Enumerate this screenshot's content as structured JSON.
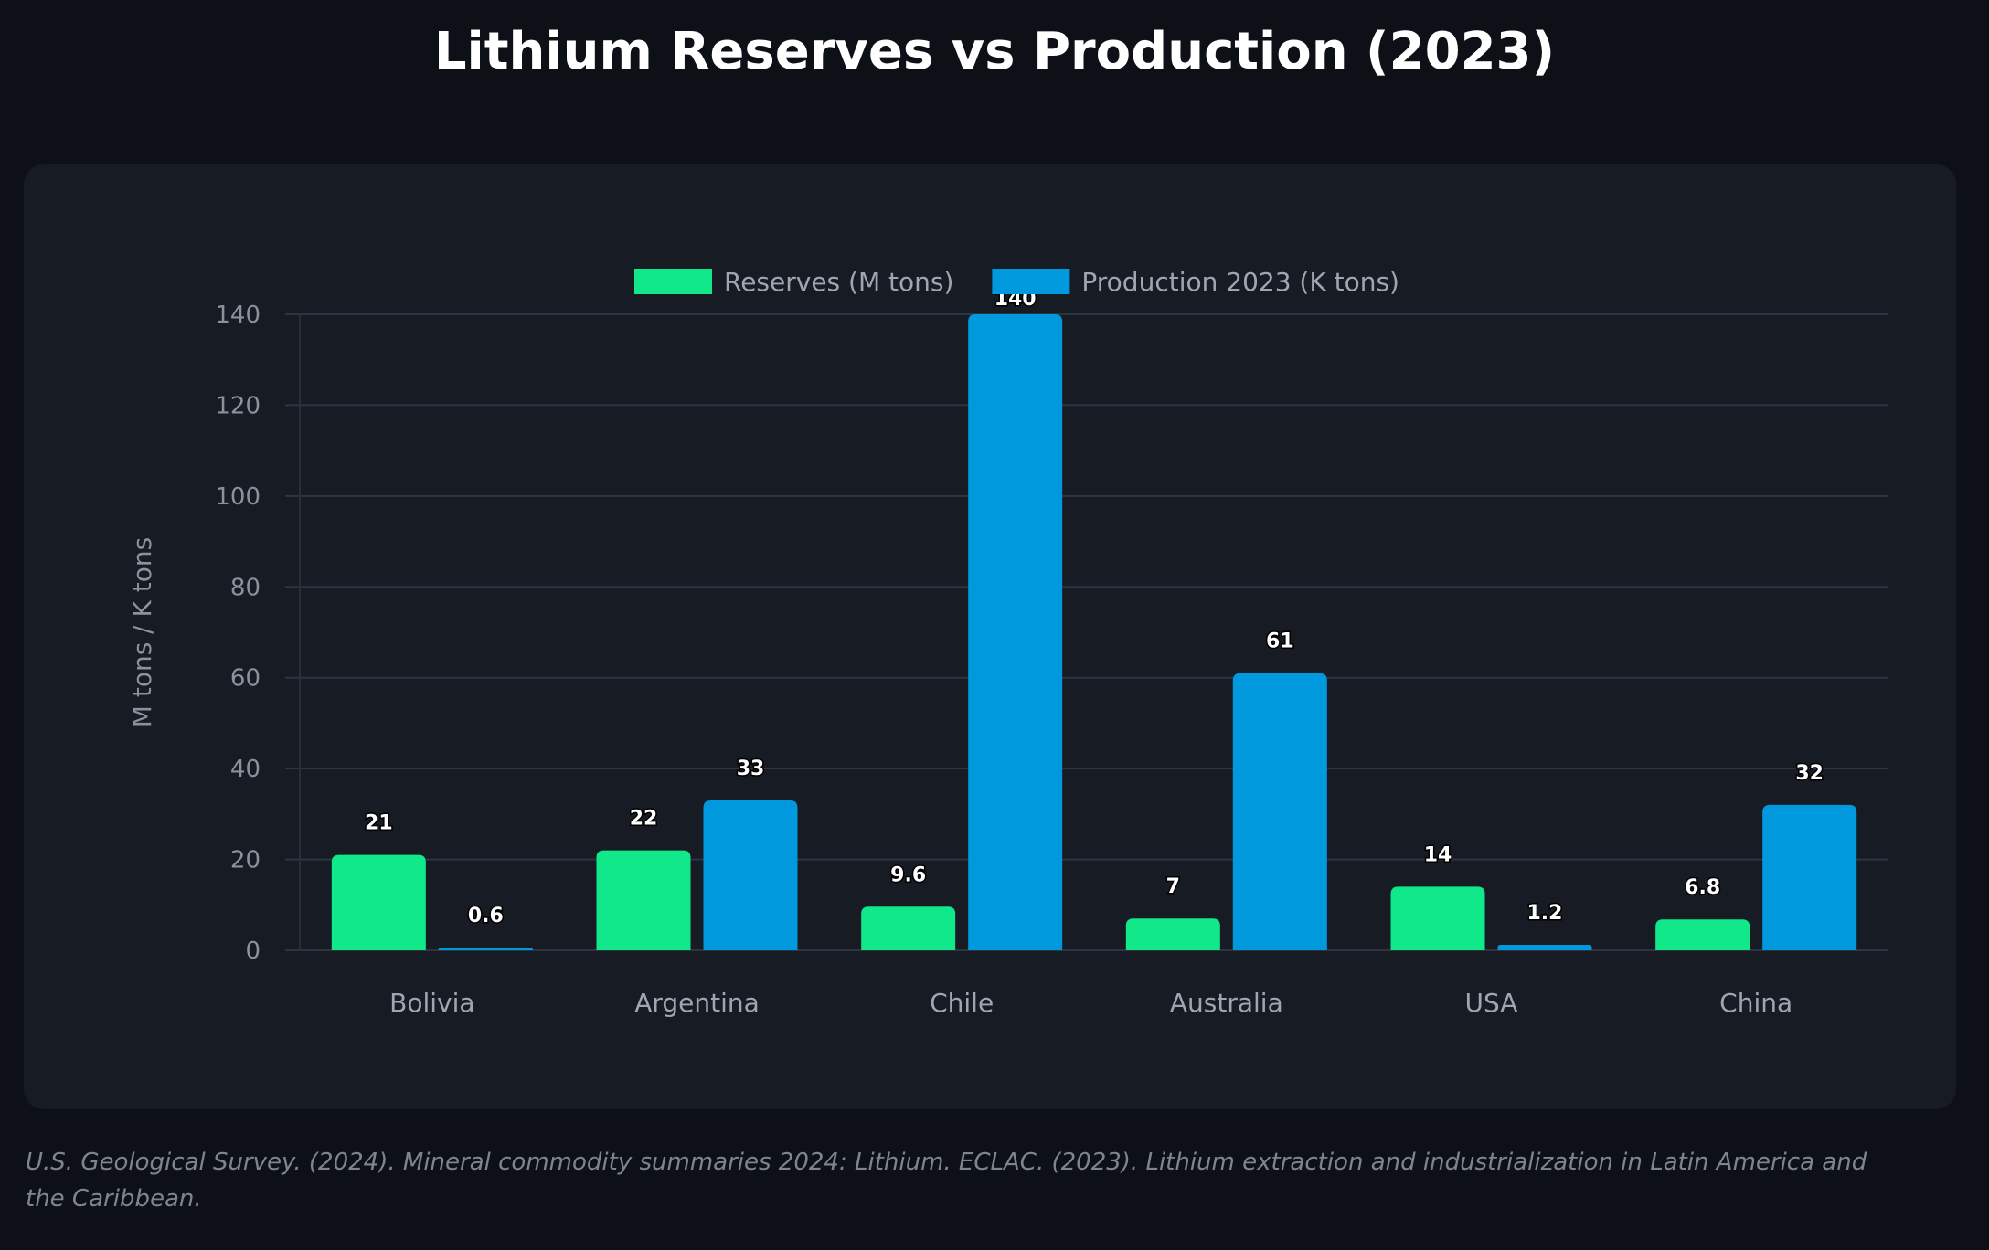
{
  "footer": "U.S. Geological Survey. (2024). Mineral commodity summaries 2024: Lithium. ECLAC. (2023). Lithium extraction and industrialization in Latin America and the Caribbean.",
  "chart_data": {
    "type": "bar",
    "title": "Lithium Reserves vs Production (2023)",
    "xlabel": "",
    "ylabel": "M tons / K tons",
    "ylim": [
      0,
      140
    ],
    "yticks": [
      0,
      20,
      40,
      60,
      80,
      100,
      120,
      140
    ],
    "grid": true,
    "legend_position": "top-center",
    "categories": [
      "Bolivia",
      "Argentina",
      "Chile",
      "Australia",
      "USA",
      "China"
    ],
    "series": [
      {
        "name": "Reserves (M tons)",
        "color": "#10e88a",
        "values": [
          21,
          22,
          9.6,
          7,
          14,
          6.8
        ]
      },
      {
        "name": "Production 2023 (K tons)",
        "color": "#0099dd",
        "values": [
          0.6,
          33,
          140,
          61,
          1.2,
          32
        ]
      }
    ]
  }
}
